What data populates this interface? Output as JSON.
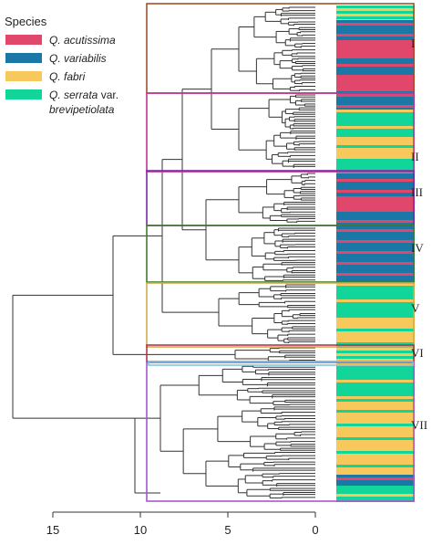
{
  "legend": {
    "title": "Species",
    "items": [
      {
        "label": "Q. acutissima",
        "color": "#e0476b"
      },
      {
        "label": "Q. variabilis",
        "color": "#1a77a6"
      },
      {
        "label": "Q. fabri",
        "color": "#f7c85c"
      },
      {
        "label_prefix": "Q. serrata",
        "label_suffix": " var.",
        "label_line2": "brevipetiolata",
        "color": "#12d59a"
      }
    ]
  },
  "clusters": [
    {
      "label": "I",
      "color": "#a0522d"
    },
    {
      "label": "II",
      "color": "#c2339a"
    },
    {
      "label": "III",
      "color": "#7b2aa6"
    },
    {
      "label": "IV",
      "color": "#3f7f2a"
    },
    {
      "label": "V",
      "color": "#d4a94a"
    },
    {
      "label": "VI",
      "color": "#b5364f"
    },
    {
      "label": "VII",
      "color": "#a855d1"
    },
    {
      "label": "",
      "color": "#7fc6e3"
    }
  ],
  "axis": {
    "ticks": [
      "15",
      "10",
      "5",
      "0"
    ]
  },
  "strip_colors": {
    "acutissima": "#e0476b",
    "variabilis": "#1a77a6",
    "fabri": "#f7c85c",
    "serrata": "#12d59a",
    "mix": "#bfc37c"
  }
}
